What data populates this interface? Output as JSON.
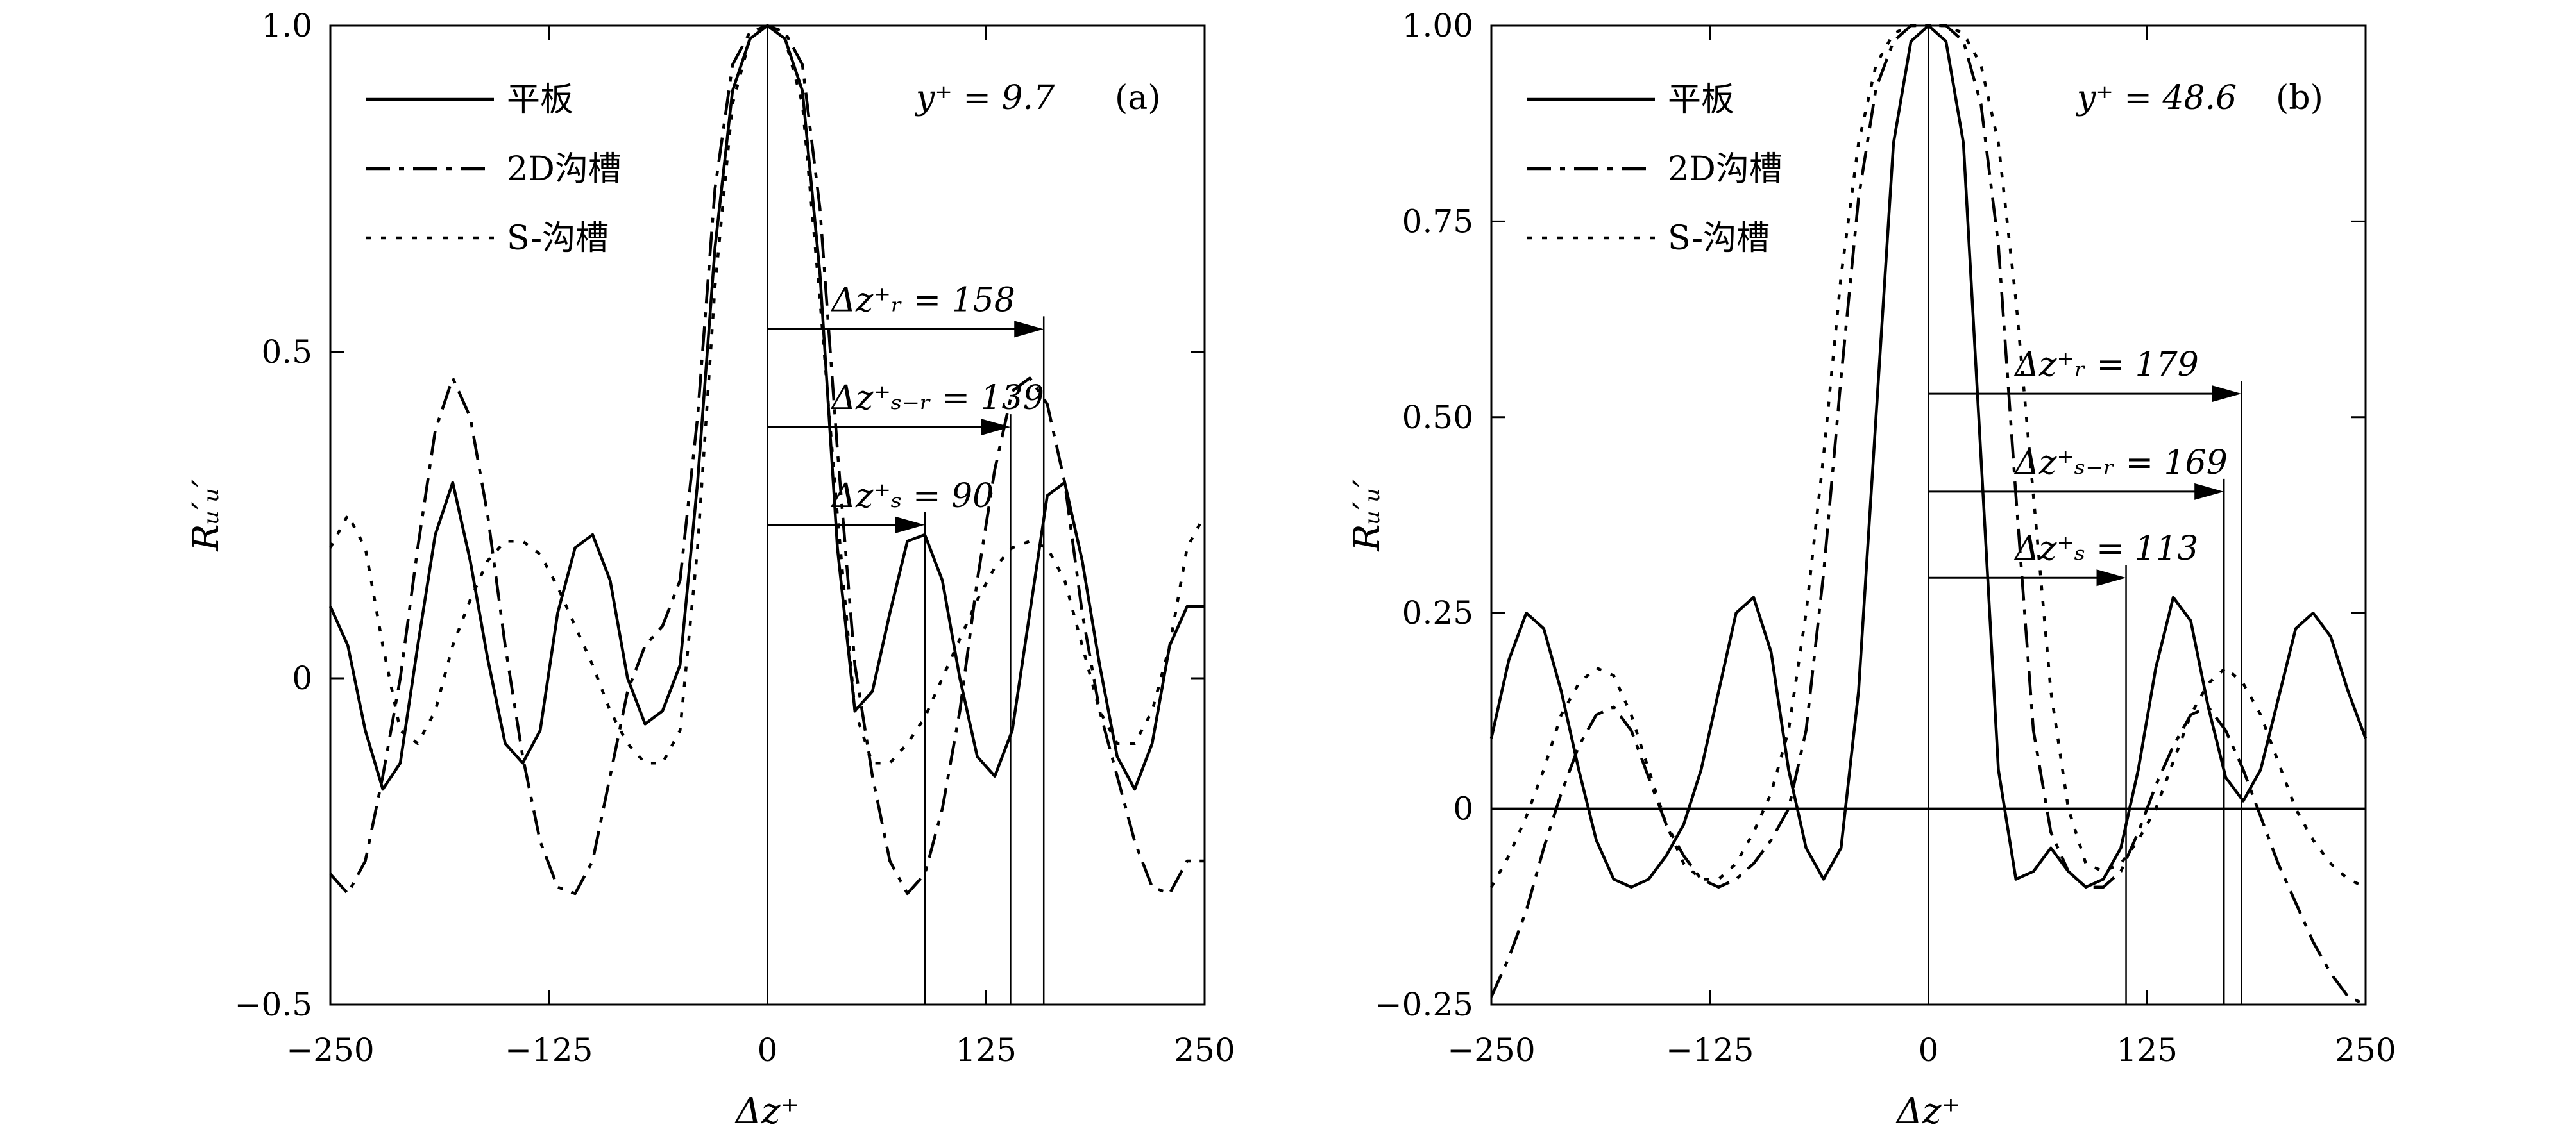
{
  "chart_data": [
    {
      "panel": "(a)",
      "type": "line",
      "position_label": "y⁺ = 9.7",
      "xlabel": "Δz⁺",
      "ylabel": "Rᵤ′ᵤ′",
      "xlim": [
        -250,
        250
      ],
      "ylim": [
        -0.5,
        1.0
      ],
      "xticks": [
        -250,
        -125,
        0,
        125,
        250
      ],
      "xtick_labels": [
        "−250",
        "−125",
        "0",
        "125",
        "250"
      ],
      "yticks": [
        -0.5,
        0,
        0.5,
        1.0
      ],
      "ytick_labels": [
        "−0.5",
        "0",
        "0.5",
        "1.0"
      ],
      "legend_position": "top-left",
      "series": [
        {
          "name": "平板",
          "style": "solid",
          "x": [
            -250,
            -240,
            -230,
            -220,
            -210,
            -200,
            -190,
            -180,
            -170,
            -160,
            -150,
            -140,
            -130,
            -120,
            -110,
            -100,
            -90,
            -80,
            -70,
            -60,
            -50,
            -40,
            -30,
            -20,
            -10,
            0,
            10,
            20,
            30,
            40,
            50,
            60,
            70,
            80,
            90,
            100,
            110,
            120,
            130,
            140,
            150,
            160,
            170,
            180,
            190,
            200,
            210,
            220,
            230,
            240,
            250
          ],
          "y": [
            0.11,
            0.05,
            -0.08,
            -0.17,
            -0.13,
            0.05,
            0.22,
            0.3,
            0.18,
            0.03,
            -0.1,
            -0.13,
            -0.08,
            0.1,
            0.2,
            0.22,
            0.15,
            0.0,
            -0.07,
            -0.05,
            0.02,
            0.3,
            0.66,
            0.9,
            0.98,
            1.0,
            0.98,
            0.9,
            0.62,
            0.2,
            -0.05,
            -0.02,
            0.1,
            0.21,
            0.22,
            0.15,
            0.0,
            -0.12,
            -0.15,
            -0.08,
            0.1,
            0.28,
            0.3,
            0.18,
            0.02,
            -0.12,
            -0.17,
            -0.1,
            0.05,
            0.11,
            0.11
          ]
        },
        {
          "name": "2D沟槽",
          "style": "dashdot",
          "x": [
            -250,
            -240,
            -230,
            -220,
            -210,
            -200,
            -190,
            -180,
            -170,
            -160,
            -150,
            -140,
            -130,
            -120,
            -110,
            -100,
            -90,
            -80,
            -70,
            -60,
            -50,
            -40,
            -30,
            -20,
            -10,
            0,
            10,
            20,
            30,
            40,
            50,
            60,
            70,
            80,
            90,
            100,
            110,
            120,
            130,
            140,
            150,
            160,
            170,
            180,
            190,
            200,
            210,
            220,
            230,
            240,
            250
          ],
          "y": [
            -0.3,
            -0.33,
            -0.28,
            -0.15,
            0.0,
            0.2,
            0.38,
            0.46,
            0.4,
            0.25,
            0.05,
            -0.12,
            -0.25,
            -0.32,
            -0.33,
            -0.28,
            -0.15,
            -0.02,
            0.05,
            0.08,
            0.15,
            0.4,
            0.75,
            0.94,
            0.99,
            1.0,
            0.99,
            0.94,
            0.72,
            0.35,
            0.02,
            -0.15,
            -0.28,
            -0.33,
            -0.3,
            -0.2,
            -0.05,
            0.15,
            0.32,
            0.44,
            0.46,
            0.42,
            0.3,
            0.1,
            -0.05,
            -0.15,
            -0.25,
            -0.32,
            -0.33,
            -0.28,
            -0.28
          ]
        },
        {
          "name": "S-沟槽",
          "style": "dotted",
          "x": [
            -250,
            -240,
            -230,
            -220,
            -210,
            -200,
            -190,
            -180,
            -170,
            -160,
            -150,
            -140,
            -130,
            -120,
            -110,
            -100,
            -90,
            -80,
            -70,
            -60,
            -50,
            -40,
            -30,
            -20,
            -10,
            0,
            10,
            20,
            30,
            40,
            50,
            60,
            70,
            80,
            90,
            100,
            110,
            120,
            130,
            140,
            150,
            160,
            170,
            180,
            190,
            200,
            210,
            220,
            230,
            240,
            250
          ],
          "y": [
            0.2,
            0.25,
            0.2,
            0.05,
            -0.08,
            -0.1,
            -0.05,
            0.05,
            0.12,
            0.18,
            0.21,
            0.21,
            0.19,
            0.14,
            0.08,
            0.02,
            -0.05,
            -0.1,
            -0.13,
            -0.13,
            -0.08,
            0.2,
            0.6,
            0.88,
            0.98,
            1.0,
            0.98,
            0.88,
            0.58,
            0.25,
            -0.05,
            -0.13,
            -0.13,
            -0.1,
            -0.06,
            0.0,
            0.06,
            0.12,
            0.17,
            0.2,
            0.21,
            0.2,
            0.15,
            0.05,
            -0.05,
            -0.1,
            -0.1,
            -0.05,
            0.05,
            0.2,
            0.25
          ]
        }
      ],
      "annotations": [
        {
          "text": "Δz⁺ᵣ = 158",
          "x": 158,
          "y": 0.535
        },
        {
          "text": "Δz⁺ₛ₋ᵣ = 139",
          "x": 139,
          "y": 0.385
        },
        {
          "text": "Δz⁺ₛ = 90",
          "x": 90,
          "y": 0.235
        }
      ]
    },
    {
      "panel": "(b)",
      "type": "line",
      "position_label": "y⁺ = 48.6",
      "xlabel": "Δz⁺",
      "ylabel": "Rᵤ′ᵤ′",
      "xlim": [
        -250,
        250
      ],
      "ylim": [
        -0.25,
        1.0
      ],
      "xticks": [
        -250,
        -125,
        0,
        125,
        250
      ],
      "xtick_labels": [
        "−250",
        "−125",
        "0",
        "125",
        "250"
      ],
      "yticks": [
        -0.25,
        0,
        0.25,
        0.5,
        0.75,
        1.0
      ],
      "ytick_labels": [
        "−0.25",
        "0",
        "0.25",
        "0.50",
        "0.75",
        "1.00"
      ],
      "legend_position": "top-left",
      "series": [
        {
          "name": "平板",
          "style": "solid",
          "x": [
            -250,
            -240,
            -230,
            -220,
            -210,
            -200,
            -190,
            -180,
            -170,
            -160,
            -150,
            -140,
            -130,
            -120,
            -110,
            -100,
            -90,
            -80,
            -70,
            -60,
            -50,
            -40,
            -30,
            -20,
            -10,
            0,
            10,
            20,
            30,
            40,
            50,
            60,
            70,
            80,
            90,
            100,
            110,
            120,
            130,
            140,
            150,
            160,
            170,
            180,
            190,
            200,
            210,
            220,
            230,
            240,
            250
          ],
          "y": [
            0.09,
            0.19,
            0.25,
            0.23,
            0.15,
            0.05,
            -0.04,
            -0.09,
            -0.1,
            -0.09,
            -0.06,
            -0.02,
            0.05,
            0.15,
            0.25,
            0.27,
            0.2,
            0.05,
            -0.05,
            -0.09,
            -0.05,
            0.15,
            0.5,
            0.85,
            0.98,
            1.0,
            0.98,
            0.85,
            0.45,
            0.05,
            -0.09,
            -0.08,
            -0.05,
            -0.08,
            -0.1,
            -0.09,
            -0.05,
            0.05,
            0.18,
            0.27,
            0.24,
            0.13,
            0.04,
            0.01,
            0.05,
            0.14,
            0.23,
            0.25,
            0.22,
            0.15,
            0.09
          ]
        },
        {
          "name": "2D沟槽",
          "style": "dashdot",
          "x": [
            -250,
            -240,
            -230,
            -220,
            -210,
            -200,
            -190,
            -180,
            -170,
            -160,
            -150,
            -140,
            -130,
            -120,
            -110,
            -100,
            -90,
            -80,
            -70,
            -60,
            -50,
            -40,
            -30,
            -20,
            -10,
            0,
            10,
            20,
            30,
            40,
            50,
            60,
            70,
            80,
            90,
            100,
            110,
            120,
            130,
            140,
            150,
            160,
            170,
            180,
            190,
            200,
            210,
            220,
            230,
            240,
            250
          ],
          "y": [
            -0.24,
            -0.19,
            -0.13,
            -0.05,
            0.02,
            0.08,
            0.12,
            0.13,
            0.1,
            0.04,
            -0.02,
            -0.06,
            -0.09,
            -0.1,
            -0.09,
            -0.07,
            -0.04,
            0.0,
            0.1,
            0.3,
            0.55,
            0.78,
            0.92,
            0.98,
            1.0,
            1.0,
            1.0,
            0.98,
            0.9,
            0.72,
            0.4,
            0.1,
            -0.03,
            -0.08,
            -0.1,
            -0.1,
            -0.08,
            -0.03,
            0.03,
            0.08,
            0.12,
            0.13,
            0.1,
            0.05,
            -0.01,
            -0.07,
            -0.12,
            -0.17,
            -0.21,
            -0.24,
            -0.25
          ]
        },
        {
          "name": "S-沟槽",
          "style": "dotted",
          "x": [
            -250,
            -240,
            -230,
            -220,
            -210,
            -200,
            -190,
            -180,
            -170,
            -160,
            -150,
            -140,
            -130,
            -120,
            -110,
            -100,
            -90,
            -80,
            -70,
            -60,
            -50,
            -40,
            -30,
            -20,
            -10,
            0,
            10,
            20,
            30,
            40,
            50,
            60,
            70,
            80,
            90,
            100,
            110,
            120,
            130,
            140,
            150,
            160,
            170,
            180,
            190,
            200,
            210,
            220,
            230,
            240,
            250
          ],
          "y": [
            -0.1,
            -0.06,
            -0.01,
            0.05,
            0.12,
            0.16,
            0.18,
            0.17,
            0.12,
            0.05,
            -0.02,
            -0.07,
            -0.09,
            -0.09,
            -0.07,
            -0.03,
            0.02,
            0.1,
            0.25,
            0.45,
            0.68,
            0.85,
            0.95,
            0.99,
            1.0,
            1.0,
            1.0,
            0.99,
            0.95,
            0.85,
            0.65,
            0.4,
            0.15,
            0.0,
            -0.07,
            -0.08,
            -0.07,
            -0.04,
            0.0,
            0.06,
            0.12,
            0.16,
            0.18,
            0.16,
            0.12,
            0.06,
            0.0,
            -0.04,
            -0.07,
            -0.09,
            -0.1
          ]
        }
      ],
      "annotations": [
        {
          "text": "Δz⁺ᵣ = 179",
          "x": 179,
          "y": 0.53
        },
        {
          "text": "Δz⁺ₛ₋ᵣ = 169",
          "x": 169,
          "y": 0.405
        },
        {
          "text": "Δz⁺ₛ = 113",
          "x": 113,
          "y": 0.295
        }
      ]
    }
  ]
}
